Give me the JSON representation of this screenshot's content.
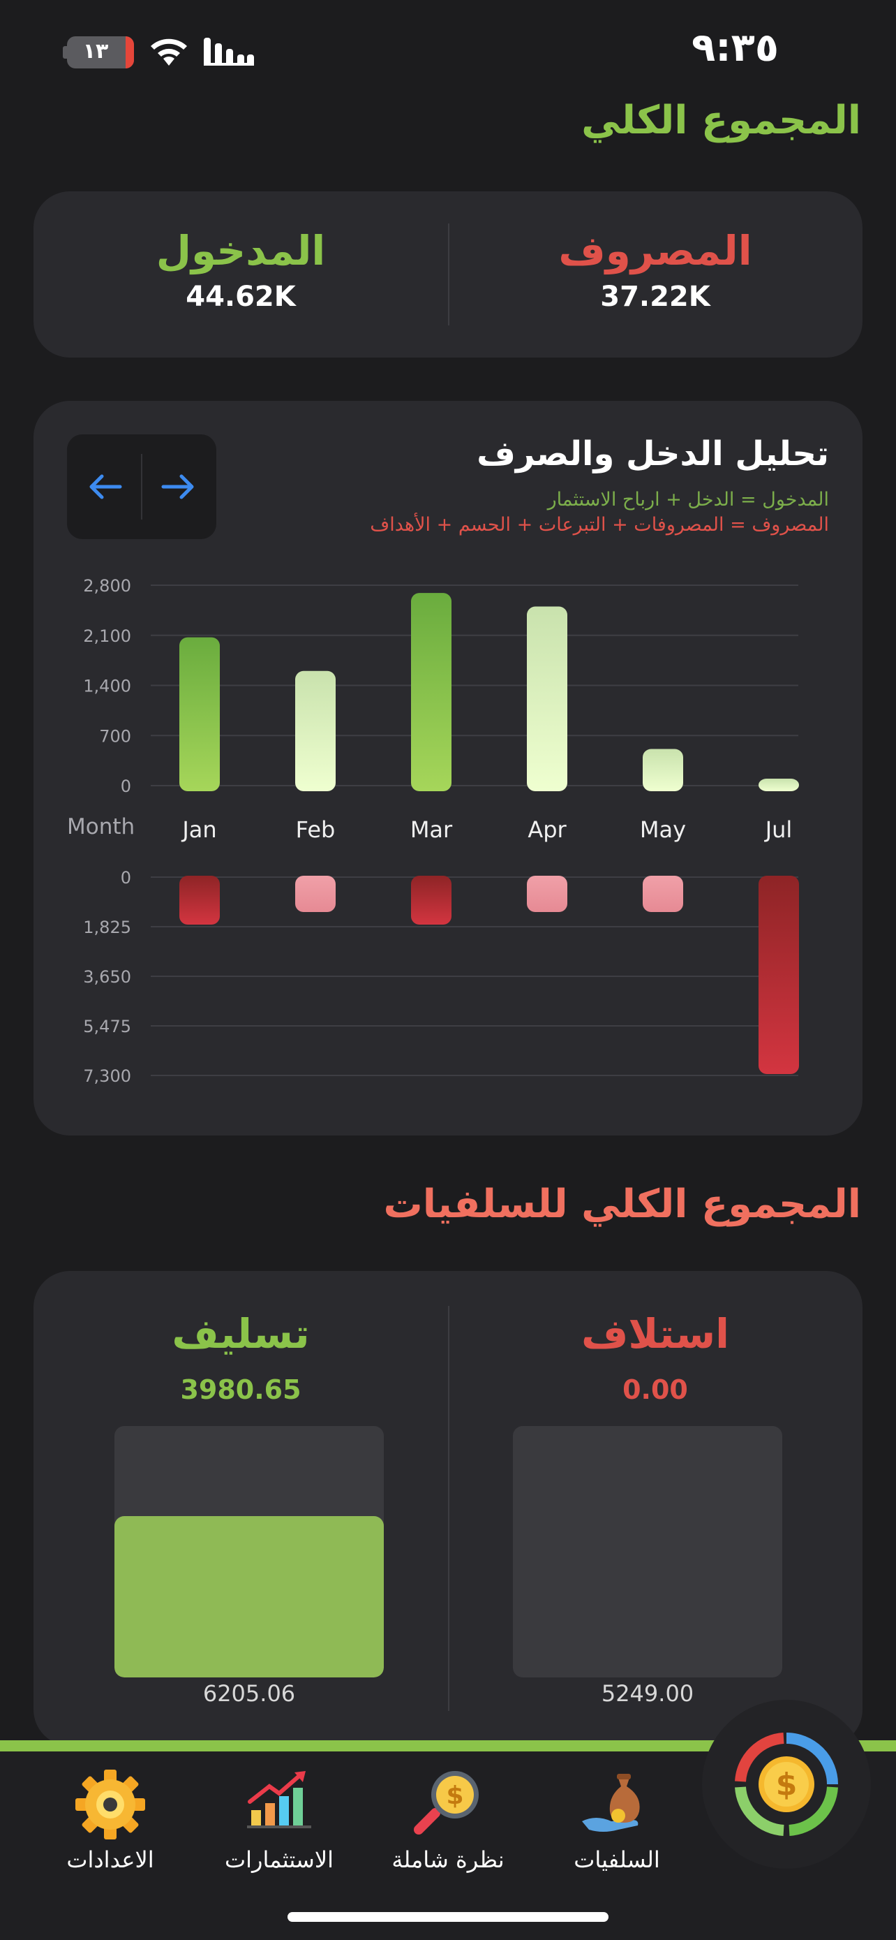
{
  "status": {
    "time": "٩:٣٥",
    "battery": "١٣"
  },
  "headers": {
    "total": "المجموع الكلي",
    "advances": "المجموع الكلي للسلفيات"
  },
  "summary": {
    "expense_label": "المصروف",
    "expense_value": "37.22K",
    "income_label": "المدخول",
    "income_value": "44.62K"
  },
  "chart_card": {
    "title": "تحليل الدخل والصرف",
    "legend_income": "المدخول = الدخل + ارباح الاستثمار",
    "legend_expense": "المصروف = المصروفات + التبرعات + الحسم + الأهداف"
  },
  "chart_data": [
    {
      "type": "bar",
      "title": "",
      "xlabel": "Month",
      "categories": [
        "Jan",
        "Feb",
        "Mar",
        "Apr",
        "May",
        "Jul"
      ],
      "series": [
        {
          "values": [
            2150,
            1680,
            2770,
            2580,
            590,
            170
          ]
        }
      ],
      "ylim": [
        0,
        2800
      ],
      "yticks": [
        "0",
        "700",
        "1,400",
        "2,100",
        "2,800"
      ],
      "grid": true
    },
    {
      "type": "bar",
      "title": "",
      "categories": [
        "Jan",
        "Feb",
        "Mar",
        "Apr",
        "May",
        "Jul"
      ],
      "series": [
        {
          "values": [
            1800,
            800,
            1800,
            800,
            800,
            7300
          ]
        }
      ],
      "ylim": [
        0,
        7300
      ],
      "y_inverted": true,
      "yticks": [
        "0",
        "1,825",
        "3,650",
        "5,475",
        "7,300"
      ],
      "grid": true
    }
  ],
  "advances": {
    "borrow_label": "استلاف",
    "borrow_value": "0.00",
    "borrow_total": "5249.00",
    "borrow_fill": 0,
    "lend_label": "تسليف",
    "lend_value": "3980.65",
    "lend_total": "6205.06",
    "lend_fill": 0.641
  },
  "tabs": [
    {
      "label": "الاعدادات",
      "icon": "gear-icon"
    },
    {
      "label": "الاستثمارات",
      "icon": "bar-chart-arrow-icon"
    },
    {
      "label": "نظرة شاملة",
      "icon": "magnifier-dollar-icon"
    },
    {
      "label": "السلفيات",
      "icon": "money-bag-hand-icon"
    }
  ],
  "fab": {
    "icon": "dollar-donut-icon"
  },
  "colors": {
    "income": "#8bc34a",
    "expense": "#e0524a",
    "accent_blue": "#3d8bf0"
  }
}
